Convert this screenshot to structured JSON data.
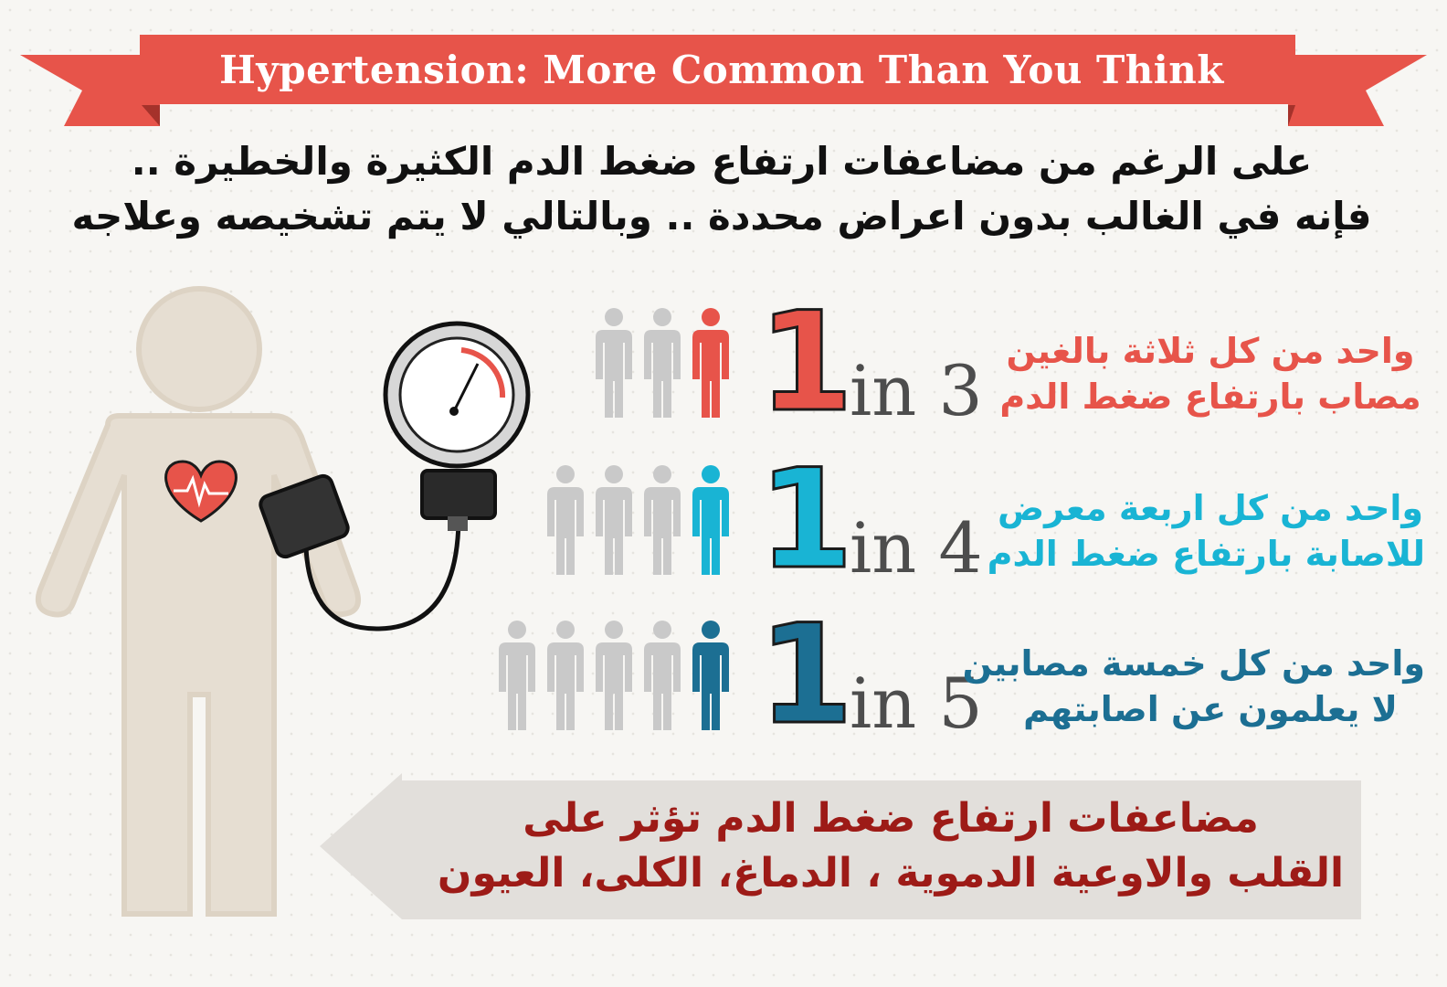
{
  "banner": {
    "title": "Hypertension: More Common Than You Think",
    "color": "#e7544a"
  },
  "intro": {
    "line1": "على الرغم من مضاعفات ارتفاع ضغط الدم الكثيرة والخطيرة ..",
    "line2": "فإنه في الغالب بدون اعراض محددة .. وبالتالي لا يتم تشخيصه وعلاجه"
  },
  "stats": [
    {
      "one": "1",
      "in_n": "in 3",
      "figures_total": 3,
      "color": "#e7544a",
      "text_line1": "واحد من كل ثلاثة بالغين",
      "text_line2": "مصاب بارتفاع ضغط الدم"
    },
    {
      "one": "1",
      "in_n": "in 4",
      "figures_total": 4,
      "color": "#19b4d4",
      "text_line1": "واحد من كل اربعة معرض",
      "text_line2": "للاصابة بارتفاع ضغط الدم"
    },
    {
      "one": "1",
      "in_n": "in 5",
      "figures_total": 5,
      "color": "#1c6f93",
      "text_line1": "واحد من كل خمسة مصابين",
      "text_line2": "لا يعلمون عن اصابتهم"
    }
  ],
  "bottom": {
    "line1": "مضاعفات ارتفاع ضغط الدم تؤثر على",
    "line2": "القلب والاوعية الدموية ، الدماغ، الكلى، العيون",
    "color": "#9d1b17"
  },
  "icons": [
    "person-figure-icon",
    "heart-icon",
    "blood-pressure-gauge-icon",
    "arrow-left-icon"
  ]
}
